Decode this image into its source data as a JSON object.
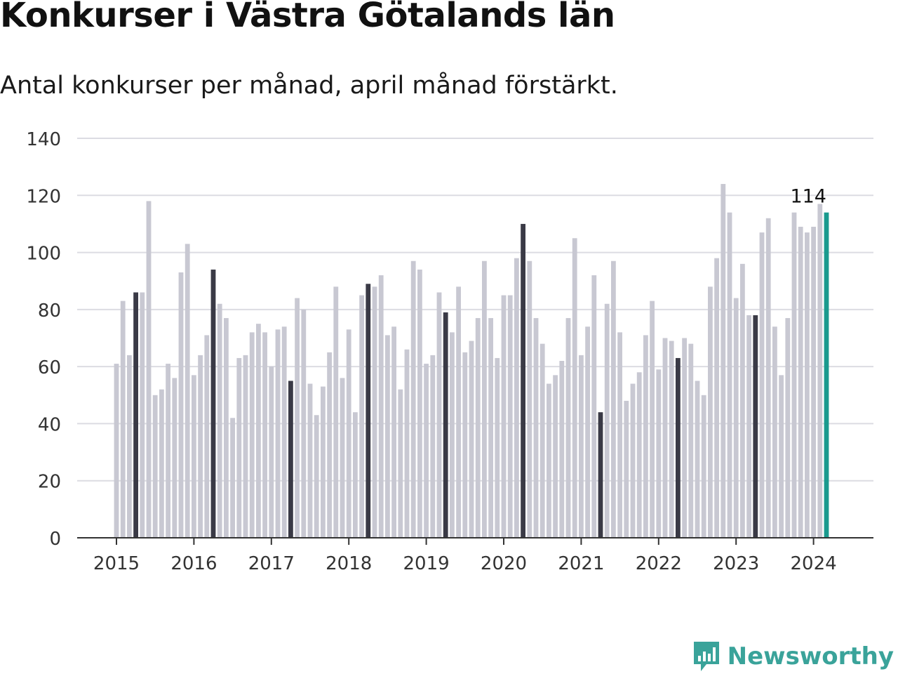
{
  "title": "Konkurser i Västra Götalands län",
  "subtitle": "Antal konkurser per månad, april månad förstärkt.",
  "brand": {
    "name": "Newsworthy",
    "icon": "bar-chart-speech-bubble-icon",
    "color": "#3aa39a"
  },
  "chart_data": {
    "type": "bar",
    "start": "2015-01",
    "x_tick_labels": [
      "2015",
      "2016",
      "2017",
      "2018",
      "2019",
      "2020",
      "2021",
      "2022",
      "2023",
      "2024"
    ],
    "y_ticks": [
      0,
      20,
      40,
      60,
      80,
      100,
      120,
      140
    ],
    "ylim": [
      0,
      140
    ],
    "grid": true,
    "highlight_month": "April",
    "annotation": "114",
    "colors": {
      "normal": "#c8c8d2",
      "april": "#3a3a46",
      "latest": "#1a9a8e"
    },
    "values": [
      61,
      83,
      64,
      86,
      86,
      118,
      50,
      52,
      61,
      56,
      93,
      103,
      57,
      64,
      71,
      94,
      82,
      77,
      42,
      63,
      64,
      72,
      75,
      72,
      60,
      73,
      74,
      55,
      84,
      80,
      54,
      43,
      53,
      65,
      88,
      56,
      73,
      44,
      85,
      89,
      88,
      92,
      71,
      74,
      52,
      66,
      97,
      94,
      61,
      64,
      86,
      79,
      72,
      88,
      65,
      69,
      77,
      97,
      77,
      63,
      85,
      85,
      98,
      110,
      97,
      77,
      68,
      54,
      57,
      62,
      77,
      105,
      64,
      74,
      92,
      44,
      82,
      97,
      72,
      48,
      54,
      58,
      71,
      83,
      59,
      70,
      69,
      63,
      70,
      68,
      55,
      50,
      88,
      98,
      124,
      114,
      84,
      96,
      78,
      78,
      107,
      112,
      74,
      57,
      77,
      114,
      109,
      107,
      109,
      117,
      114
    ]
  }
}
